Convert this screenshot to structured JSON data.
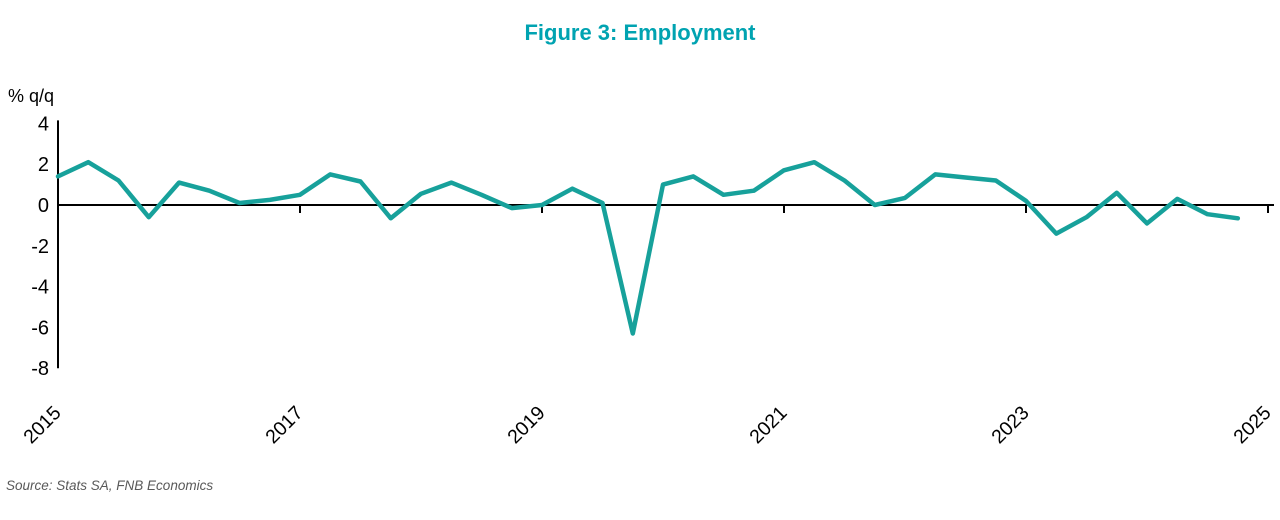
{
  "title": "Figure 3: Employment",
  "axis_label": "% q/q",
  "source": "Source: Stats SA, FNB Economics",
  "colors": {
    "title": "#00A3B1",
    "line": "#17A19B",
    "axis": "#000000",
    "tick_text": "#000000",
    "source_text": "#595959",
    "background": "#ffffff"
  },
  "chart_data": {
    "type": "line",
    "title": "Figure 3: Employment",
    "xlabel": "",
    "ylabel": "% q/q",
    "grid": false,
    "legend": "none",
    "ylim": [
      -8,
      4
    ],
    "y_ticks": [
      4,
      2,
      0,
      -2,
      -4,
      -6,
      -8
    ],
    "x_tick_labels": [
      "2015",
      "2017",
      "2019",
      "2021",
      "2023",
      "2025"
    ],
    "series": [
      {
        "name": "Employment % q/q",
        "x": [
          "2015Q1",
          "2015Q2",
          "2015Q3",
          "2015Q4",
          "2016Q1",
          "2016Q2",
          "2016Q3",
          "2016Q4",
          "2017Q1",
          "2017Q2",
          "2017Q3",
          "2017Q4",
          "2018Q1",
          "2018Q2",
          "2018Q3",
          "2018Q4",
          "2019Q1",
          "2019Q2",
          "2019Q3",
          "2019Q4",
          "2020Q1",
          "2020Q2",
          "2020Q3",
          "2020Q4",
          "2021Q1",
          "2021Q2",
          "2021Q3",
          "2021Q4",
          "2022Q1",
          "2022Q2",
          "2022Q3",
          "2022Q4",
          "2023Q1",
          "2023Q2",
          "2023Q3",
          "2023Q4",
          "2024Q1",
          "2024Q2",
          "2024Q3",
          "2024Q4"
        ],
        "values": [
          1.4,
          2.1,
          1.2,
          -0.6,
          1.1,
          0.7,
          0.1,
          0.25,
          0.5,
          1.5,
          1.15,
          -0.65,
          0.55,
          1.1,
          0.5,
          -0.15,
          0.0,
          0.8,
          0.1,
          -6.3,
          1.0,
          1.4,
          0.5,
          0.7,
          1.7,
          2.1,
          1.2,
          0.0,
          0.35,
          1.5,
          1.35,
          1.2,
          0.2,
          -1.4,
          -0.6,
          0.6,
          -0.9,
          0.3,
          -0.45,
          -0.65
        ]
      }
    ]
  }
}
